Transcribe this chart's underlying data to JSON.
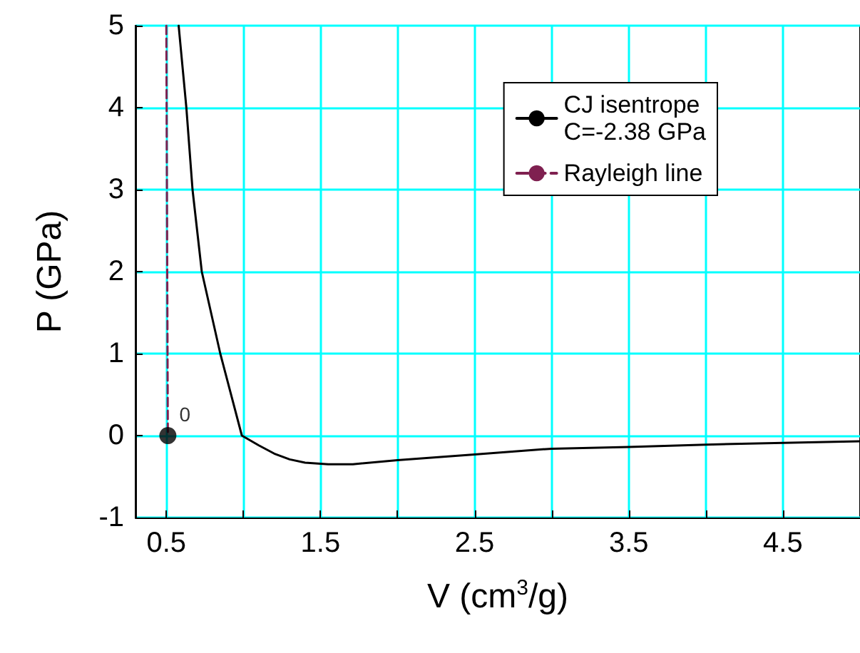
{
  "chart_data": {
    "type": "line",
    "xlabel": "V (cm$^{3}$/g)",
    "ylabel": "P (GPa)",
    "xlim": [
      0.3,
      5
    ],
    "ylim": [
      -1,
      5
    ],
    "xticks": [
      0.5,
      {
        "value": 1,
        "label": null
      },
      1.5,
      {
        "value": 2,
        "label": null
      },
      2.5,
      {
        "value": 3,
        "label": null
      },
      3.5,
      {
        "value": 4,
        "label": null
      },
      4.5
    ],
    "yticks": [
      -1,
      0,
      1,
      2,
      3,
      4,
      5
    ],
    "grid": true,
    "legend": "top right",
    "series": [
      {
        "name": "CJ isentrope\nC=-2.38 GPa",
        "color": "#000000",
        "line_style": "solid",
        "marker": "none",
        "x": [
          0.58,
          0.63,
          0.67,
          0.73,
          0.85,
          0.99,
          1.1,
          1.2,
          1.3,
          1.4,
          1.55,
          1.71,
          2.0,
          2.5,
          3.0,
          3.5,
          4.0,
          4.5,
          5.0
        ],
        "values": [
          5,
          4,
          3,
          2,
          1,
          0,
          -0.12,
          -0.22,
          -0.29,
          -0.33,
          -0.35,
          -0.35,
          -0.3,
          -0.23,
          -0.16,
          -0.14,
          -0.11,
          -0.09,
          -0.07
        ]
      },
      {
        "name": "Rayleigh line",
        "color": "#7f2050",
        "line_style": "dashed",
        "marker": "none",
        "x": [
          0.5,
          0.51
        ],
        "values": [
          5,
          0
        ]
      },
      {
        "type": "scatter",
        "color": "#000000",
        "marker": "circle",
        "x": [
          0.51
        ],
        "values": [
          0
        ]
      }
    ],
    "annotations": [
      {
        "text": "0",
        "x": 0.51,
        "y": 0
      }
    ]
  }
}
